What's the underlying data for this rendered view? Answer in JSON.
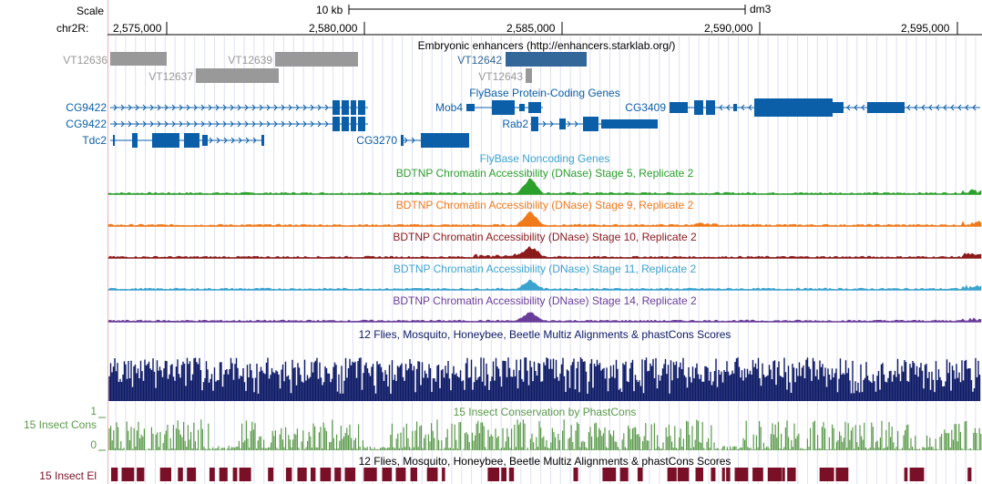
{
  "header": {
    "scale_label": "Scale",
    "scale_bar_label": "10 kb",
    "assembly": "dm3",
    "chrom_label": "chr2R:",
    "ticks": [
      "2,575,000",
      "2,580,000",
      "2,585,000",
      "2,590,000",
      "2,595,000"
    ]
  },
  "enhancers": {
    "title": "Embryonic enhancers (http://enhancers.starklab.org/)",
    "items": [
      {
        "label": "VT12636",
        "color": "#999999"
      },
      {
        "label": "VT12637",
        "color": "#999999"
      },
      {
        "label": "VT12639",
        "color": "#999999"
      },
      {
        "label": "VT12642",
        "color": "#336699"
      },
      {
        "label": "VT12643",
        "color": "#999999"
      }
    ]
  },
  "genes": {
    "title": "FlyBase Protein-Coding Genes",
    "color": "#0b5fa8",
    "labels": [
      "CG9422",
      "CG9422",
      "Tdc2",
      "Mob4",
      "CG3409",
      "Rab2",
      "CG3270"
    ]
  },
  "noncoding": {
    "title": "FlyBase Noncoding Genes"
  },
  "dnase_tracks": [
    {
      "title": "BDTNP Chromatin Accessibility (DNase) Stage 5, Replicate 2",
      "color": "#2ca02c"
    },
    {
      "title": "BDTNP Chromatin Accessibility (DNase) Stage 9, Replicate 2",
      "color": "#f07a1a"
    },
    {
      "title": "BDTNP Chromatin Accessibility (DNase) Stage 10, Replicate 2",
      "color": "#8b1a1a"
    },
    {
      "title": "BDTNP Chromatin Accessibility (DNase) Stage 11, Replicate 2",
      "color": "#3ba3d0"
    },
    {
      "title": "BDTNP Chromatin Accessibility (DNase) Stage 14, Replicate 2",
      "color": "#6a3d9a"
    }
  ],
  "multiz": {
    "title": "12 Flies, Mosquito, Honeybee, Beetle Multiz Alignments & phastCons Scores",
    "color": "#0d1a66"
  },
  "cons": {
    "title": "15 Insect Conservation by PhastCons",
    "side_label": "15 Insect Cons",
    "ymax": "1",
    "ymin": "0",
    "color": "#5a9a4a"
  },
  "elements": {
    "title": "12 Flies, Mosquito, Honeybee, Beetle Multiz Alignments & phastCons Scores",
    "side_label": "15 Insect El",
    "color": "#7a1028"
  }
}
